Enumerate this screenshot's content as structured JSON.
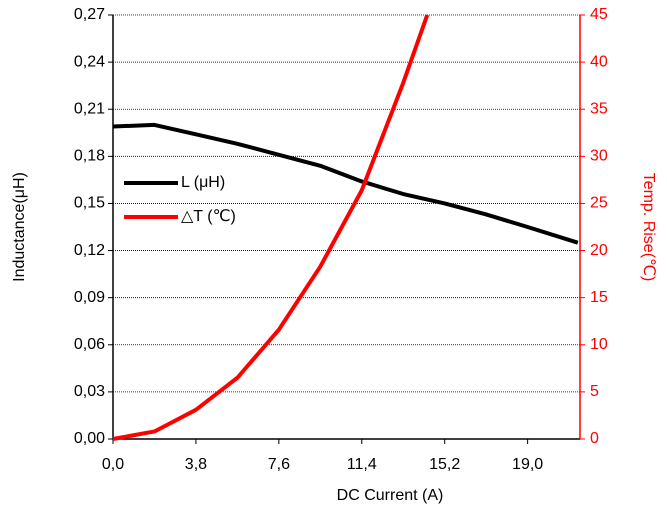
{
  "chart_data": {
    "type": "line",
    "xlabel": "DC Current (A)",
    "ylabel": "Inductance(μH)",
    "y2label": "Temp. Rise(℃)",
    "xlim": [
      0,
      21.4
    ],
    "ylim": [
      0,
      0.27
    ],
    "y2lim": [
      0,
      45
    ],
    "xticks": [
      {
        "value": 0,
        "label": "0,0"
      },
      {
        "value": 3.8,
        "label": "3,8"
      },
      {
        "value": 7.6,
        "label": "7,6"
      },
      {
        "value": 11.4,
        "label": "11,4"
      },
      {
        "value": 15.2,
        "label": "15,2"
      },
      {
        "value": 19.0,
        "label": "19,0"
      }
    ],
    "yticks": [
      {
        "value": 0,
        "label": "0,00"
      },
      {
        "value": 0.03,
        "label": "0,03"
      },
      {
        "value": 0.06,
        "label": "0,06"
      },
      {
        "value": 0.09,
        "label": "0,09"
      },
      {
        "value": 0.12,
        "label": "0,12"
      },
      {
        "value": 0.15,
        "label": "0,15"
      },
      {
        "value": 0.18,
        "label": "0,18"
      },
      {
        "value": 0.21,
        "label": "0,21"
      },
      {
        "value": 0.24,
        "label": "0,24"
      },
      {
        "value": 0.27,
        "label": "0,27"
      }
    ],
    "y2ticks": [
      0,
      5,
      10,
      15,
      20,
      25,
      30,
      35,
      40,
      45
    ],
    "grid": true,
    "legend": "left",
    "series": [
      {
        "name": "L (μH)",
        "color": "#000000",
        "x": [
          0,
          1.9,
          3.8,
          5.7,
          7.6,
          9.5,
          11.4,
          13.3,
          15.2,
          17.1,
          19.0,
          21.3
        ],
        "values": [
          0.199,
          0.2,
          0.194,
          0.188,
          0.181,
          0.174,
          0.164,
          0.156,
          0.15,
          0.143,
          0.135,
          0.125
        ]
      },
      {
        "name": "△T (℃)",
        "color": "#ff0000",
        "axis": "y2",
        "x": [
          0,
          1.9,
          3.8,
          5.7,
          7.6,
          9.5,
          11.4,
          13.3,
          14.4
        ],
        "values": [
          0,
          0.8,
          3.1,
          6.5,
          11.6,
          18.3,
          26.4,
          37.8,
          45
        ]
      }
    ]
  }
}
